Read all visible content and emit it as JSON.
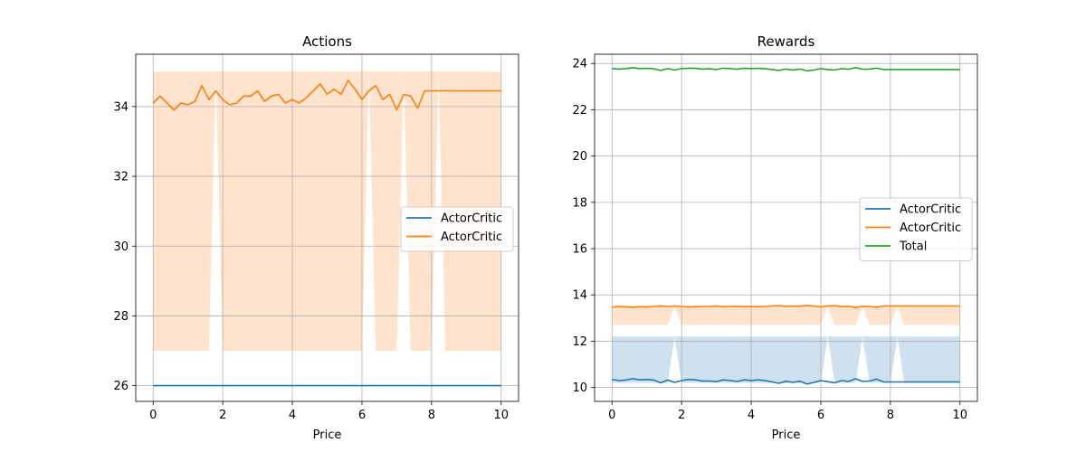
{
  "chart_data": [
    {
      "type": "line",
      "title": "Actions",
      "xlabel": "Price",
      "ylabel": "",
      "xlim": [
        -0.5,
        10.5
      ],
      "ylim": [
        25.55,
        35.5
      ],
      "xticks": [
        "0",
        "2",
        "4",
        "6",
        "8",
        "10"
      ],
      "yticks": [
        "26",
        "28",
        "30",
        "32",
        "34"
      ],
      "grid": true,
      "legend_position": "center-right",
      "x": [
        0,
        0.2,
        0.4,
        0.6,
        0.8,
        1.0,
        1.2,
        1.4,
        1.6,
        1.8,
        2.0,
        2.2,
        2.4,
        2.6,
        2.8,
        3.0,
        3.2,
        3.4,
        3.6,
        3.8,
        4.0,
        4.2,
        4.4,
        4.6,
        4.8,
        5.0,
        5.2,
        5.4,
        5.6,
        5.8,
        6.0,
        6.2,
        6.4,
        6.6,
        6.8,
        7.0,
        7.2,
        7.4,
        7.6,
        7.8,
        8.0,
        8.2,
        8.4,
        8.6,
        8.8,
        9.0,
        9.2,
        9.4,
        9.6,
        9.8,
        10.0
      ],
      "series": [
        {
          "name": "ActorCritic",
          "color": "#1f77b4",
          "values": [
            26.0,
            26.0,
            26.0,
            26.0,
            26.0,
            26.0,
            26.0,
            26.0,
            26.0,
            26.0,
            26.0,
            26.0,
            26.0,
            26.0,
            26.0,
            26.0,
            26.0,
            26.0,
            26.0,
            26.0,
            26.0,
            26.0,
            26.0,
            26.0,
            26.0,
            26.0,
            26.0,
            26.0,
            26.0,
            26.0,
            26.0,
            26.0,
            26.0,
            26.0,
            26.0,
            26.0,
            26.0,
            26.0,
            26.0,
            26.0,
            26.0,
            26.0,
            26.0,
            26.0,
            26.0,
            26.0,
            26.0,
            26.0,
            26.0,
            26.0,
            26.0
          ]
        },
        {
          "name": "ActorCritic",
          "color": "#ff7f0e",
          "values": [
            34.1,
            34.3,
            34.1,
            33.9,
            34.1,
            34.05,
            34.15,
            34.6,
            34.2,
            34.45,
            34.2,
            34.05,
            34.1,
            34.3,
            34.3,
            34.45,
            34.15,
            34.3,
            34.35,
            34.1,
            34.2,
            34.1,
            34.25,
            34.45,
            34.65,
            34.35,
            34.5,
            34.35,
            34.75,
            34.5,
            34.2,
            34.45,
            34.6,
            34.2,
            34.35,
            33.9,
            34.35,
            34.3,
            33.95,
            34.45,
            34.45,
            34.45,
            34.45,
            34.45,
            34.45,
            34.45,
            34.45,
            34.45,
            34.45,
            34.45,
            34.45
          ],
          "band_lower": [
            27,
            27,
            27,
            27,
            27,
            27,
            27,
            27,
            27,
            35,
            27,
            27,
            27,
            27,
            27,
            27,
            27,
            27,
            27,
            27,
            27,
            27,
            27,
            27,
            27,
            27,
            27,
            27,
            27,
            27,
            27,
            35,
            27,
            27,
            27,
            27,
            35,
            27,
            27,
            27,
            27,
            35,
            27,
            27,
            27,
            27,
            27,
            27,
            27,
            27,
            27
          ],
          "band_upper": [
            35,
            35,
            35,
            35,
            35,
            35,
            35,
            35,
            35,
            35,
            35,
            35,
            35,
            35,
            35,
            35,
            35,
            35,
            35,
            35,
            35,
            35,
            35,
            35,
            35,
            35,
            35,
            35,
            35,
            35,
            35,
            35,
            35,
            35,
            35,
            35,
            35,
            35,
            35,
            35,
            35,
            35,
            35,
            35,
            35,
            35,
            35,
            35,
            35,
            35,
            35
          ],
          "band_color": "#ffe3cc"
        }
      ]
    },
    {
      "type": "line",
      "title": "Rewards",
      "xlabel": "Price",
      "ylabel": "",
      "xlim": [
        -0.5,
        10.5
      ],
      "ylim": [
        9.4,
        24.4
      ],
      "xticks": [
        "0",
        "2",
        "4",
        "6",
        "8",
        "10"
      ],
      "yticks": [
        "10",
        "12",
        "14",
        "16",
        "18",
        "20",
        "22",
        "24"
      ],
      "grid": true,
      "legend_position": "center-right",
      "x": [
        0,
        0.2,
        0.4,
        0.6,
        0.8,
        1.0,
        1.2,
        1.4,
        1.6,
        1.8,
        2.0,
        2.2,
        2.4,
        2.6,
        2.8,
        3.0,
        3.2,
        3.4,
        3.6,
        3.8,
        4.0,
        4.2,
        4.4,
        4.6,
        4.8,
        5.0,
        5.2,
        5.4,
        5.6,
        5.8,
        6.0,
        6.2,
        6.4,
        6.6,
        6.8,
        7.0,
        7.2,
        7.4,
        7.6,
        7.8,
        8.0,
        8.2,
        8.4,
        8.6,
        8.8,
        9.0,
        9.2,
        9.4,
        9.6,
        9.8,
        10.0
      ],
      "series": [
        {
          "name": "ActorCritic",
          "color": "#1f77b4",
          "values": [
            10.35,
            10.3,
            10.32,
            10.38,
            10.33,
            10.35,
            10.32,
            10.2,
            10.32,
            10.22,
            10.3,
            10.35,
            10.33,
            10.28,
            10.28,
            10.25,
            10.33,
            10.3,
            10.26,
            10.33,
            10.3,
            10.33,
            10.3,
            10.24,
            10.18,
            10.27,
            10.22,
            10.27,
            10.15,
            10.22,
            10.3,
            10.25,
            10.2,
            10.3,
            10.26,
            10.38,
            10.26,
            10.28,
            10.36,
            10.24,
            10.24,
            10.24,
            10.24,
            10.24,
            10.24,
            10.24,
            10.24,
            10.24,
            10.24,
            10.24,
            10.24
          ],
          "band_lower": [
            10.2,
            10.2,
            10.2,
            10.2,
            10.2,
            10.2,
            10.2,
            10.2,
            10.2,
            12.2,
            10.2,
            10.2,
            10.2,
            10.2,
            10.2,
            10.2,
            10.2,
            10.2,
            10.2,
            10.2,
            10.2,
            10.2,
            10.2,
            10.2,
            10.2,
            10.2,
            10.2,
            10.2,
            10.2,
            10.2,
            10.2,
            12.2,
            10.2,
            10.2,
            10.2,
            10.2,
            12.2,
            10.2,
            10.2,
            10.2,
            10.2,
            12.2,
            10.2,
            10.2,
            10.2,
            10.2,
            10.2,
            10.2,
            10.2,
            10.2,
            10.2
          ],
          "band_upper": [
            12.2,
            12.2,
            12.2,
            12.2,
            12.2,
            12.2,
            12.2,
            12.2,
            12.2,
            12.2,
            12.2,
            12.2,
            12.2,
            12.2,
            12.2,
            12.2,
            12.2,
            12.2,
            12.2,
            12.2,
            12.2,
            12.2,
            12.2,
            12.2,
            12.2,
            12.2,
            12.2,
            12.2,
            12.2,
            12.2,
            12.2,
            12.2,
            12.2,
            12.2,
            12.2,
            12.2,
            12.2,
            12.2,
            12.2,
            12.2,
            12.2,
            12.2,
            12.2,
            12.2,
            12.2,
            12.2,
            12.2,
            12.2,
            12.2,
            12.2,
            12.2
          ],
          "band_color": "#cfe0ef"
        },
        {
          "name": "ActorCritic",
          "color": "#ff7f0e",
          "values": [
            13.47,
            13.5,
            13.49,
            13.47,
            13.49,
            13.48,
            13.5,
            13.53,
            13.5,
            13.52,
            13.5,
            13.48,
            13.49,
            13.5,
            13.5,
            13.52,
            13.49,
            13.5,
            13.51,
            13.49,
            13.5,
            13.49,
            13.5,
            13.52,
            13.54,
            13.51,
            13.52,
            13.51,
            13.55,
            13.52,
            13.49,
            13.52,
            13.54,
            13.49,
            13.51,
            13.46,
            13.51,
            13.5,
            13.47,
            13.52,
            13.52,
            13.52,
            13.52,
            13.52,
            13.52,
            13.52,
            13.52,
            13.52,
            13.52,
            13.52,
            13.52
          ],
          "band_lower": [
            12.7,
            12.7,
            12.7,
            12.7,
            12.7,
            12.7,
            12.7,
            12.7,
            12.7,
            13.5,
            12.7,
            12.7,
            12.7,
            12.7,
            12.7,
            12.7,
            12.7,
            12.7,
            12.7,
            12.7,
            12.7,
            12.7,
            12.7,
            12.7,
            12.7,
            12.7,
            12.7,
            12.7,
            12.7,
            12.7,
            12.7,
            13.5,
            12.7,
            12.7,
            12.7,
            12.7,
            13.5,
            12.7,
            12.7,
            12.7,
            12.7,
            13.5,
            12.7,
            12.7,
            12.7,
            12.7,
            12.7,
            12.7,
            12.7,
            12.7,
            12.7
          ],
          "band_upper": [
            13.5,
            13.5,
            13.5,
            13.5,
            13.5,
            13.5,
            13.5,
            13.5,
            13.5,
            13.5,
            13.5,
            13.5,
            13.5,
            13.5,
            13.5,
            13.5,
            13.5,
            13.5,
            13.5,
            13.5,
            13.5,
            13.5,
            13.5,
            13.5,
            13.5,
            13.5,
            13.5,
            13.5,
            13.5,
            13.5,
            13.5,
            13.5,
            13.5,
            13.5,
            13.5,
            13.5,
            13.5,
            13.5,
            13.5,
            13.5,
            13.5,
            13.5,
            13.5,
            13.5,
            13.5,
            13.5,
            13.5,
            13.5,
            13.5,
            13.5,
            13.5
          ],
          "band_color": "#ffe3cc"
        },
        {
          "name": "Total",
          "color": "#2ca02c",
          "values": [
            23.78,
            23.76,
            23.78,
            23.82,
            23.78,
            23.79,
            23.77,
            23.7,
            23.78,
            23.72,
            23.78,
            23.8,
            23.79,
            23.76,
            23.77,
            23.74,
            23.8,
            23.78,
            23.75,
            23.8,
            23.78,
            23.79,
            23.78,
            23.74,
            23.7,
            23.76,
            23.72,
            23.76,
            23.68,
            23.72,
            23.78,
            23.74,
            23.72,
            23.78,
            23.75,
            23.82,
            23.75,
            23.76,
            23.8,
            23.74,
            23.74,
            23.74,
            23.74,
            23.74,
            23.74,
            23.74,
            23.74,
            23.74,
            23.74,
            23.74,
            23.74
          ]
        }
      ]
    }
  ]
}
